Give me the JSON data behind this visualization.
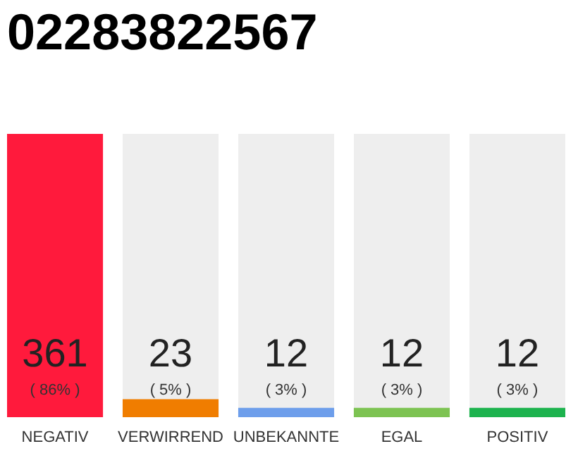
{
  "chart_data": {
    "type": "bar",
    "title": "02283822567",
    "categories": [
      "NEGATIV",
      "VERWIRREND",
      "UNBEKANNTE",
      "EGAL",
      "POSITIV"
    ],
    "values": [
      361,
      23,
      12,
      12,
      12
    ],
    "colors": [
      "#ff1a3c",
      "#f07d00",
      "#6d9eeb",
      "#7dc352",
      "#1db34e"
    ],
    "data_labels": true,
    "annotations": [
      "( 86% )",
      "( 5% )",
      "( 3% )",
      "( 3% )",
      "( 3% )"
    ]
  }
}
